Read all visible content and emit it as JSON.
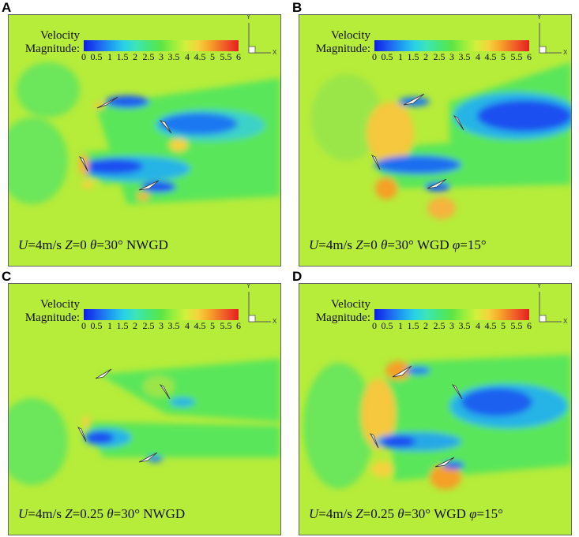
{
  "legend": {
    "title_line1": "Velocity",
    "title_line2": "Magnitude:",
    "ticks": [
      "0",
      "0.5",
      "1",
      "1.5",
      "2",
      "2.5",
      "3",
      "3.5",
      "4",
      "4.5",
      "5",
      "5.5",
      "6"
    ]
  },
  "axes": {
    "y": "Y",
    "x": "X"
  },
  "panels": [
    {
      "id": "A",
      "letter": "A",
      "caption": {
        "u_var": "U",
        "u_val": "=4m/s ",
        "z_var": "Z",
        "z_val": "=0  ",
        "theta_var": "θ",
        "theta_val": "=30° NWGD",
        "phi_var": "",
        "phi_val": ""
      }
    },
    {
      "id": "B",
      "letter": "B",
      "caption": {
        "u_var": "U",
        "u_val": "=4m/s ",
        "z_var": "Z",
        "z_val": "=0  ",
        "theta_var": "θ",
        "theta_val": "=30° WGD ",
        "phi_var": "φ",
        "phi_val": "=15°"
      }
    },
    {
      "id": "C",
      "letter": "C",
      "caption": {
        "u_var": "U",
        "u_val": "=4m/s ",
        "z_var": "Z",
        "z_val": "=0.25  ",
        "theta_var": "θ",
        "theta_val": "=30° NWGD",
        "phi_var": "",
        "phi_val": ""
      }
    },
    {
      "id": "D",
      "letter": "D",
      "caption": {
        "u_var": "U",
        "u_val": "=4m/s ",
        "z_var": "Z",
        "z_val": "=0.25  ",
        "theta_var": "θ",
        "theta_val": "=30° WGD ",
        "phi_var": "φ",
        "phi_val": "=15°"
      }
    }
  ],
  "colors": {
    "background": "#b6ec3a",
    "wake": "#5ae65a",
    "low": "#1e5ff0",
    "mid": "#28c8e6",
    "high": "#f5b43c",
    "peak": "#f06428"
  }
}
